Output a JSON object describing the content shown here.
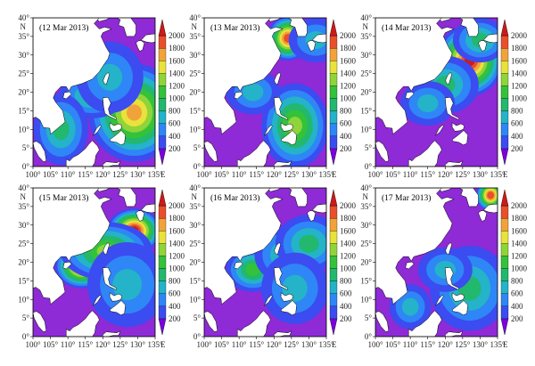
{
  "figure": {
    "lon_unit": "E",
    "lat_unit": "N",
    "lon_ticks": [
      "100°",
      "105°",
      "110°",
      "115°",
      "120°",
      "125°",
      "130°",
      "135°"
    ],
    "lat_ticks": [
      "0°",
      "5°",
      "10°",
      "15°",
      "20°",
      "25°",
      "30°",
      "35°",
      "40°"
    ],
    "colorbar_ticks": [
      "200",
      "400",
      "600",
      "800",
      "1000",
      "1200",
      "1400",
      "1600",
      "1800",
      "2000"
    ],
    "colorbar_colors": [
      "#7c00e0",
      "#3b4cf0",
      "#2f86f6",
      "#24b3c8",
      "#22b86e",
      "#34c23a",
      "#8fd43a",
      "#e8e23a",
      "#f2a23a",
      "#e84f2a",
      "#cc1a1a"
    ],
    "background_fill": "#8e2ad6",
    "land_color": "#ffffff"
  },
  "panels": [
    {
      "label": "(12 Mar 2013)",
      "blobs": [
        {
          "lon": 129,
          "lat": 14.5,
          "rx": 7,
          "ry": 7,
          "v": 1600
        },
        {
          "lon": 117,
          "lat": 19,
          "rx": 5,
          "ry": 3,
          "v": 900
        },
        {
          "lon": 108,
          "lat": 10,
          "rx": 4,
          "ry": 5,
          "v": 900
        },
        {
          "lon": 122,
          "lat": 24,
          "rx": 5,
          "ry": 5,
          "v": 700
        }
      ]
    },
    {
      "label": "(13 Mar 2013)",
      "blobs": [
        {
          "lon": 124,
          "lat": 34.5,
          "rx": 3,
          "ry": 3,
          "v": 1800
        },
        {
          "lon": 126,
          "lat": 11,
          "rx": 5,
          "ry": 6,
          "v": 1200
        },
        {
          "lon": 114,
          "lat": 20,
          "rx": 4,
          "ry": 3,
          "v": 700
        },
        {
          "lon": 132,
          "lat": 34,
          "rx": 4,
          "ry": 3,
          "v": 700
        }
      ]
    },
    {
      "label": "(14 Mar 2013)",
      "blobs": [
        {
          "lon": 127,
          "lat": 28.5,
          "rx": 5,
          "ry": 5,
          "v": 2000
        },
        {
          "lon": 120,
          "lat": 22,
          "rx": 5,
          "ry": 4,
          "v": 800
        },
        {
          "lon": 130,
          "lat": 34,
          "rx": 4,
          "ry": 3,
          "v": 900
        },
        {
          "lon": 115,
          "lat": 17,
          "rx": 4,
          "ry": 3,
          "v": 600
        }
      ]
    },
    {
      "label": "(15 Mar 2013)",
      "blobs": [
        {
          "lon": 129,
          "lat": 28.5,
          "rx": 4,
          "ry": 3,
          "v": 2000
        },
        {
          "lon": 114,
          "lat": 19,
          "rx": 4,
          "ry": 3,
          "v": 1800
        },
        {
          "lon": 121,
          "lat": 23,
          "rx": 7,
          "ry": 4,
          "v": 1200
        },
        {
          "lon": 127,
          "lat": 14,
          "rx": 6,
          "ry": 6,
          "v": 700
        }
      ]
    },
    {
      "label": "(16 Mar 2013)",
      "blobs": [
        {
          "lon": 114,
          "lat": 18,
          "rx": 4,
          "ry": 3,
          "v": 1100
        },
        {
          "lon": 124,
          "lat": 22,
          "rx": 5,
          "ry": 4,
          "v": 800
        },
        {
          "lon": 130,
          "lat": 25,
          "rx": 5,
          "ry": 4,
          "v": 800
        },
        {
          "lon": 126,
          "lat": 13,
          "rx": 5,
          "ry": 5,
          "v": 600
        }
      ]
    },
    {
      "label": "(17 Mar 2013)",
      "blobs": [
        {
          "lon": 127,
          "lat": 13,
          "rx": 6,
          "ry": 6,
          "v": 800
        },
        {
          "lon": 120,
          "lat": 18,
          "rx": 4,
          "ry": 3,
          "v": 600
        },
        {
          "lon": 110,
          "lat": 8,
          "rx": 3,
          "ry": 3,
          "v": 600
        },
        {
          "lon": 133,
          "lat": 38,
          "rx": 2,
          "ry": 2,
          "v": 1800
        }
      ]
    }
  ]
}
